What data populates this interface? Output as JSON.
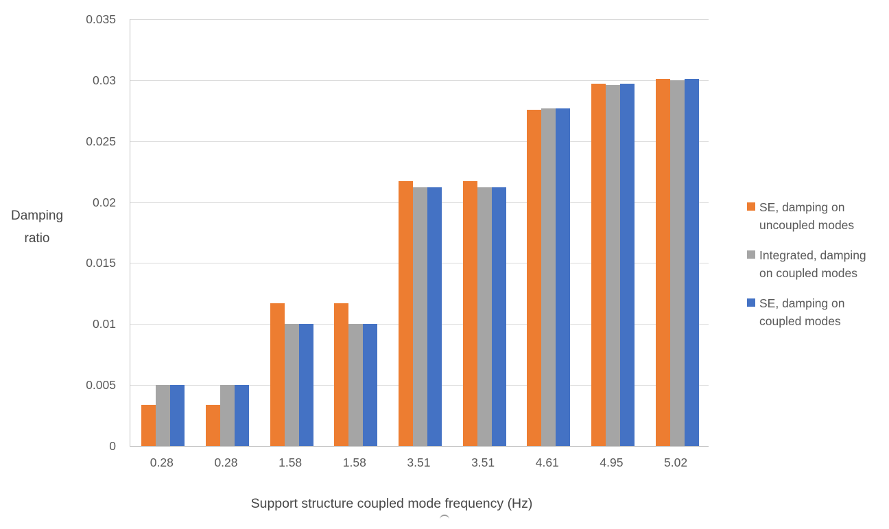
{
  "chart_data": {
    "type": "bar",
    "title": "",
    "xlabel": "Support structure coupled mode frequency (Hz)",
    "ylabel": "Damping ratio",
    "ylabel_lines": [
      "Damping",
      "ratio"
    ],
    "categories": [
      "0.28",
      "0.28",
      "1.58",
      "1.58",
      "3.51",
      "3.51",
      "4.61",
      "4.95",
      "5.02"
    ],
    "series": [
      {
        "id": "se-uncoupled",
        "name": "SE, damping on uncoupled modes",
        "legend_lines": [
          "SE, damping on",
          "uncoupled modes"
        ],
        "color": "#ED7D31",
        "values": [
          0.0034,
          0.0034,
          0.0117,
          0.0117,
          0.0217,
          0.0217,
          0.0276,
          0.0297,
          0.0301
        ]
      },
      {
        "id": "integrated-coupled",
        "name": "Integrated, damping on coupled modes",
        "legend_lines": [
          "Integrated, damping",
          "on coupled modes"
        ],
        "color": "#A5A5A5",
        "values": [
          0.005,
          0.005,
          0.01,
          0.01,
          0.0212,
          0.0212,
          0.0277,
          0.0296,
          0.03
        ]
      },
      {
        "id": "se-coupled",
        "name": "SE, damping on coupled modes",
        "legend_lines": [
          "SE, damping on",
          "coupled modes"
        ],
        "color": "#4472C4",
        "values": [
          0.005,
          0.005,
          0.01,
          0.01,
          0.0212,
          0.0212,
          0.0277,
          0.0297,
          0.0301
        ]
      }
    ],
    "ylim": [
      0,
      0.035
    ],
    "ytick_step": 0.005,
    "yticks": [
      "0",
      "0.005",
      "0.01",
      "0.015",
      "0.02",
      "0.025",
      "0.03",
      "0.035"
    ],
    "grid": true,
    "legend_position": "right"
  },
  "colors": {
    "background": "#FFFFFF",
    "gridline": "#D9D9D9",
    "axis_line": "#BFBFBF",
    "tick_text": "#595959",
    "title_text": "#474747"
  }
}
